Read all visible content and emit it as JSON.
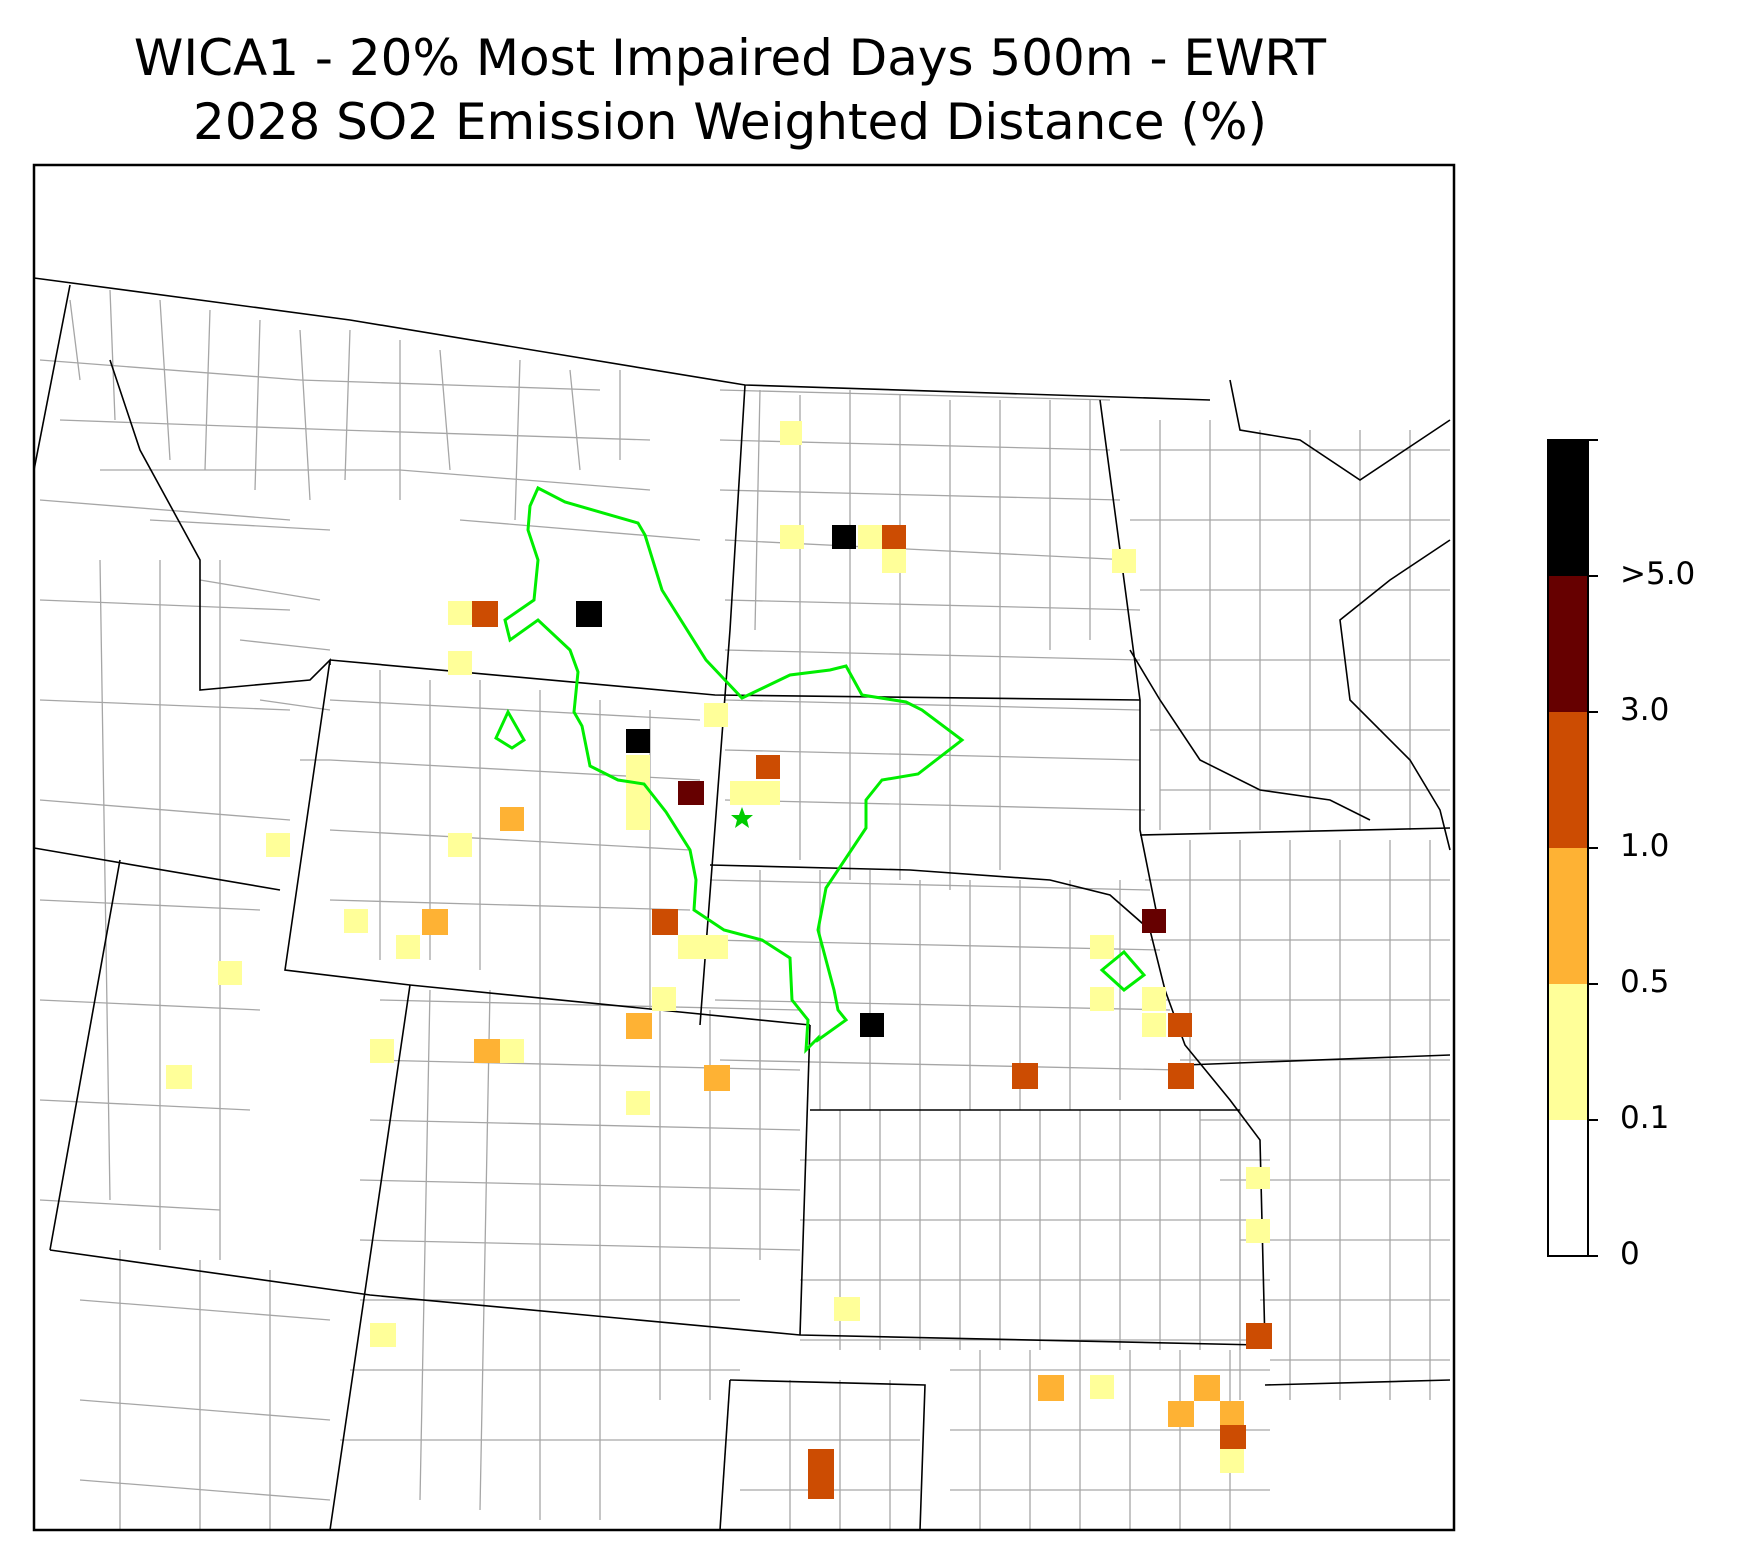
{
  "title": {
    "line1": "WICA1 - 20% Most Impaired Days 500m - EWRT",
    "line2": "2028 SO2 Emission Weighted Distance (%)"
  },
  "colorbar": {
    "bins": [
      {
        "label": "0",
        "color": "#ffffff"
      },
      {
        "label": "0.1",
        "color": "#ffff99"
      },
      {
        "label": "0.5",
        "color": "#feb234"
      },
      {
        "label": "1.0",
        "color": "#cc4c02"
      },
      {
        "label": "3.0",
        "color": "#660000"
      },
      {
        "label": ">5.0",
        "color": "#000000"
      }
    ]
  },
  "colors": {
    "state_border": "#000000",
    "county_border": "#a6a6a6",
    "contour": "#00ee00",
    "site_marker": "#00cc00"
  },
  "legend_position": "right",
  "marker": {
    "type": "star",
    "name": "WICA1 site"
  }
}
